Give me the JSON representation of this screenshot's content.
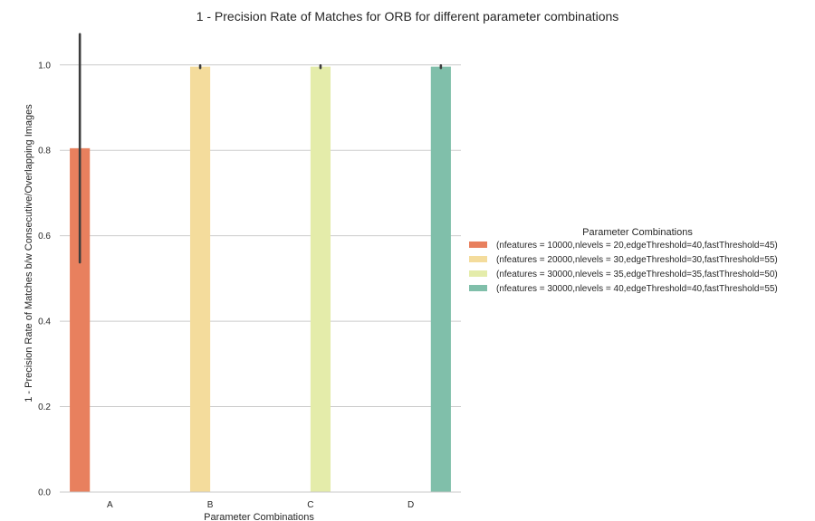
{
  "chart_data": {
    "type": "bar",
    "title": "1 - Precision Rate of Matches for ORB for different parameter combinations",
    "xlabel": "Parameter Combinations",
    "ylabel": "1 - Precision Rate of Matches b/w Consecutive/Overlapping Images",
    "categories": [
      "A",
      "B",
      "C",
      "D"
    ],
    "ylim": [
      0,
      1.08
    ],
    "yticks": [
      0.0,
      0.2,
      0.4,
      0.6,
      0.8,
      1.0
    ],
    "ytick_labels": [
      "0.0",
      "0.2",
      "0.4",
      "0.6",
      "0.8",
      "1.0"
    ],
    "grid": true,
    "legend": {
      "title": "Parameter Combinations",
      "placement": "center-right"
    },
    "series": [
      {
        "name": "(nfeatures = 10000,nlevels = 20,edgeThreshold=40,fastThreshold=45)",
        "color": "#e8805e",
        "values": [
          0.805,
          null,
          null,
          null
        ],
        "err_low": [
          0.538,
          null,
          null,
          null
        ],
        "err_high": [
          1.072,
          null,
          null,
          null
        ]
      },
      {
        "name": "(nfeatures = 20000,nlevels = 30,edgeThreshold=30,fastThreshold=55)",
        "color": "#f4dc9c",
        "values": [
          null,
          0.996,
          null,
          null
        ],
        "err_low": [
          null,
          0.993,
          null,
          null
        ],
        "err_high": [
          null,
          0.999,
          null,
          null
        ]
      },
      {
        "name": "(nfeatures = 30000,nlevels = 35,edgeThreshold=35,fastThreshold=50)",
        "color": "#e4ecaa",
        "values": [
          null,
          null,
          0.996,
          null
        ],
        "err_low": [
          null,
          null,
          0.993,
          null
        ],
        "err_high": [
          null,
          null,
          0.999,
          null
        ]
      },
      {
        "name": "(nfeatures = 30000,nlevels = 40,edgeThreshold=40,fastThreshold=55)",
        "color": "#80bfaa",
        "values": [
          null,
          null,
          null,
          0.996
        ],
        "err_low": [
          null,
          null,
          null,
          0.993
        ],
        "err_high": [
          null,
          null,
          null,
          0.999
        ]
      }
    ]
  }
}
